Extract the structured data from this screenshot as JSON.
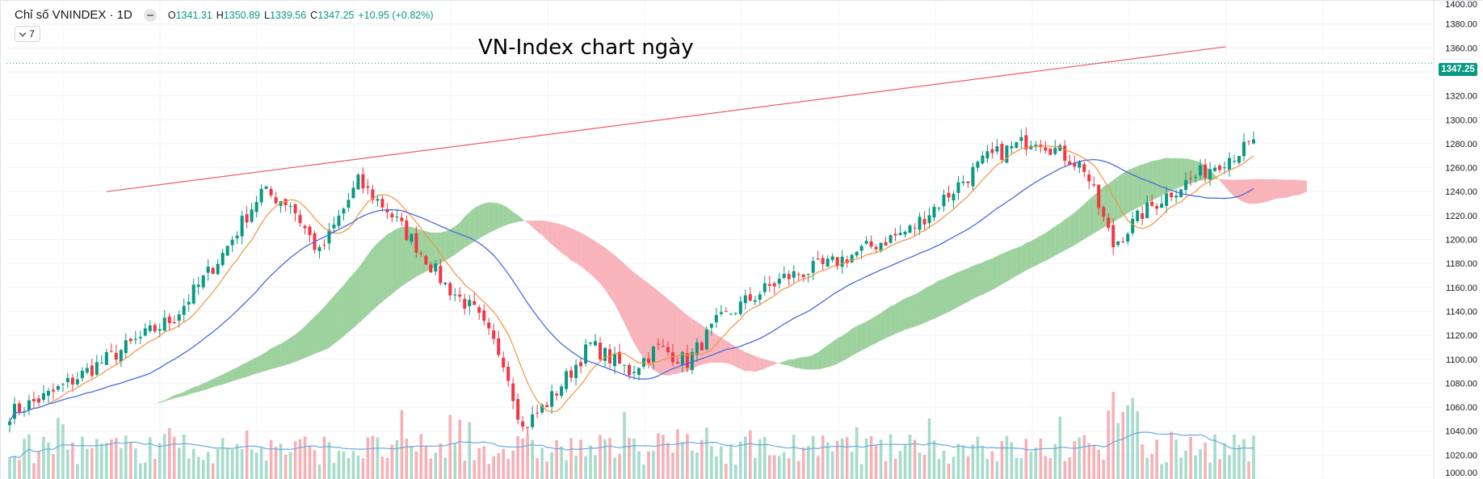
{
  "header": {
    "symbol": "Chỉ số VNINDEX · 1D",
    "open_label": "O",
    "open": "1341.31",
    "high_label": "H",
    "high": "1350.89",
    "low_label": "L",
    "low": "1339.56",
    "close_label": "C",
    "close": "1347.25",
    "change": "+10.95 (+0.82%)",
    "indicators_count": "7"
  },
  "colors": {
    "up": "#089981",
    "down": "#f23645",
    "ma_fast": "#f5923e",
    "ma_slow": "#4a69e0",
    "cloud_bull": "#8cc98c",
    "cloud_bear": "#f7a7ae",
    "trendline": "#f05a66"
  },
  "chart_data": {
    "type": "candlestick",
    "title": "VN-Index chart ngày",
    "ylim": [
      1000,
      1400
    ],
    "y_ticks": [
      "1000.00",
      "1020.00",
      "1040.00",
      "1060.00",
      "1080.00",
      "1100.00",
      "1120.00",
      "1140.00",
      "1160.00",
      "1180.00",
      "1200.00",
      "1220.00",
      "1240.00",
      "1260.00",
      "1280.00",
      "1300.00",
      "1320.00",
      "1340.00",
      "1360.00",
      "1380.00",
      "1400.00"
    ],
    "last_price": "1347.25",
    "bars": 258,
    "close_anchors": [
      [
        0,
        1055
      ],
      [
        8,
        1070
      ],
      [
        22,
        1105
      ],
      [
        34,
        1135
      ],
      [
        44,
        1188
      ],
      [
        52,
        1240
      ],
      [
        58,
        1230
      ],
      [
        64,
        1188
      ],
      [
        72,
        1248
      ],
      [
        78,
        1225
      ],
      [
        84,
        1195
      ],
      [
        90,
        1162
      ],
      [
        96,
        1140
      ],
      [
        102,
        1100
      ],
      [
        106,
        1042
      ],
      [
        112,
        1068
      ],
      [
        120,
        1112
      ],
      [
        128,
        1090
      ],
      [
        134,
        1110
      ],
      [
        140,
        1098
      ],
      [
        146,
        1130
      ],
      [
        152,
        1148
      ],
      [
        160,
        1168
      ],
      [
        170,
        1180
      ],
      [
        180,
        1198
      ],
      [
        186,
        1208
      ],
      [
        194,
        1238
      ],
      [
        202,
        1268
      ],
      [
        212,
        1285
      ],
      [
        222,
        1260
      ],
      [
        228,
        1195
      ],
      [
        234,
        1222
      ],
      [
        240,
        1240
      ],
      [
        250,
        1265
      ],
      [
        258,
        1282
      ]
    ],
    "trendline": {
      "from": [
        20,
        1240
      ],
      "to": [
        248,
        1360
      ]
    },
    "ma_fast_label": "MA fast",
    "ma_slow_label": "MA slow",
    "volume_series": "volume"
  }
}
